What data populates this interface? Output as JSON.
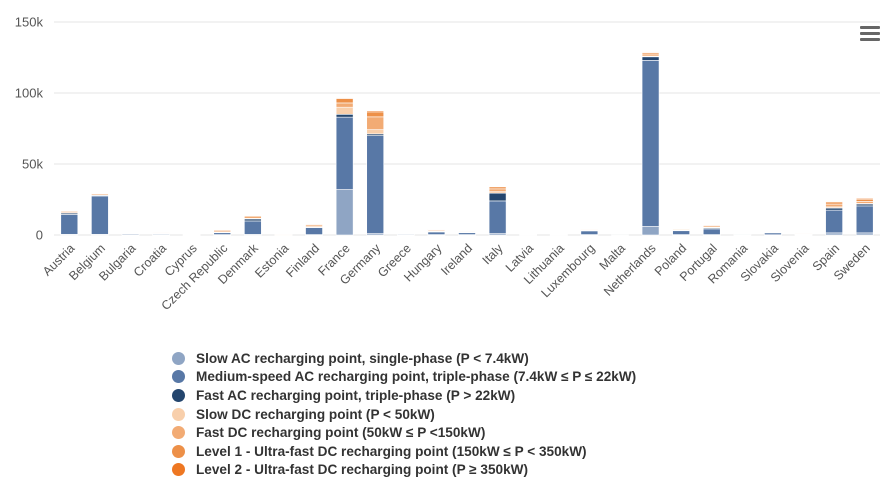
{
  "chart_data": {
    "type": "bar",
    "stacked": true,
    "categories": [
      "Austria",
      "Belgium",
      "Bulgaria",
      "Croatia",
      "Cyprus",
      "Czech Republic",
      "Denmark",
      "Estonia",
      "Finland",
      "France",
      "Germany",
      "Greece",
      "Hungary",
      "Ireland",
      "Italy",
      "Latvia",
      "Lithuania",
      "Luxembourg",
      "Malta",
      "Netherlands",
      "Poland",
      "Portugal",
      "Romania",
      "Slovakia",
      "Slovenia",
      "Spain",
      "Sweden"
    ],
    "yticks": [
      "0",
      "50k",
      "100k",
      "150k"
    ],
    "ylim": [
      0,
      150000
    ],
    "grid": true,
    "legend_position": "bottom",
    "series": [
      {
        "name": "Slow AC recharging point, single-phase (P < 7.4kW)",
        "color": "#8fa5c4",
        "values": [
          500,
          500,
          200,
          100,
          0,
          300,
          400,
          100,
          300,
          32000,
          1000,
          100,
          300,
          300,
          1000,
          100,
          50,
          300,
          0,
          6000,
          300,
          300,
          100,
          200,
          100,
          1500,
          1500
        ]
      },
      {
        "name": "Medium-speed AC recharging point, triple-phase (7.4kW ≤ P ≤ 22kW)",
        "color": "#5878a6",
        "values": [
          14000,
          27000,
          900,
          900,
          100,
          1500,
          9500,
          100,
          5000,
          51000,
          69000,
          900,
          2000,
          1500,
          23000,
          200,
          100,
          2800,
          50,
          117000,
          2700,
          4000,
          500,
          1500,
          400,
          16000,
          19000
        ]
      },
      {
        "name": "Fast AC recharging point, triple-phase (P > 22kW)",
        "color": "#24466e",
        "values": [
          1000,
          500,
          100,
          100,
          0,
          200,
          1500,
          0,
          300,
          2000,
          1200,
          100,
          200,
          200,
          5500,
          0,
          0,
          200,
          0,
          2500,
          500,
          800,
          100,
          200,
          100,
          1500,
          1500
        ]
      },
      {
        "name": "Slow DC recharging point (P < 50kW)",
        "color": "#f8cfab",
        "values": [
          300,
          300,
          100,
          100,
          20,
          200,
          300,
          50,
          300,
          5000,
          3000,
          50,
          300,
          200,
          1000,
          300,
          50,
          50,
          0,
          500,
          200,
          300,
          200,
          100,
          300,
          800,
          200
        ]
      },
      {
        "name": "Fast DC recharging point (50kW ≤ P <150kW)",
        "color": "#f2ab74",
        "values": [
          800,
          800,
          200,
          200,
          50,
          1200,
          1200,
          100,
          1200,
          3000,
          9000,
          100,
          800,
          600,
          2000,
          200,
          50,
          100,
          0,
          1500,
          600,
          1000,
          300,
          200,
          400,
          2000,
          1500
        ]
      },
      {
        "name": "Level 1 - Ultra-fast DC recharging point (150kW ≤ P < 350kW)",
        "color": "#ed9048",
        "values": [
          700,
          600,
          50,
          100,
          0,
          300,
          800,
          50,
          600,
          3000,
          3500,
          50,
          300,
          200,
          1500,
          50,
          20,
          100,
          0,
          1000,
          400,
          700,
          100,
          100,
          100,
          1500,
          1500
        ]
      },
      {
        "name": "Level 2 - Ultra-fast DC recharging point (P ≥ 350kW)",
        "color": "#ee7722",
        "values": [
          200,
          150,
          0,
          0,
          0,
          100,
          300,
          0,
          200,
          500,
          800,
          0,
          100,
          50,
          300,
          0,
          0,
          50,
          0,
          400,
          100,
          200,
          0,
          50,
          0,
          400,
          600
        ]
      }
    ]
  },
  "menu": {
    "icon": "hamburger-menu-icon"
  }
}
